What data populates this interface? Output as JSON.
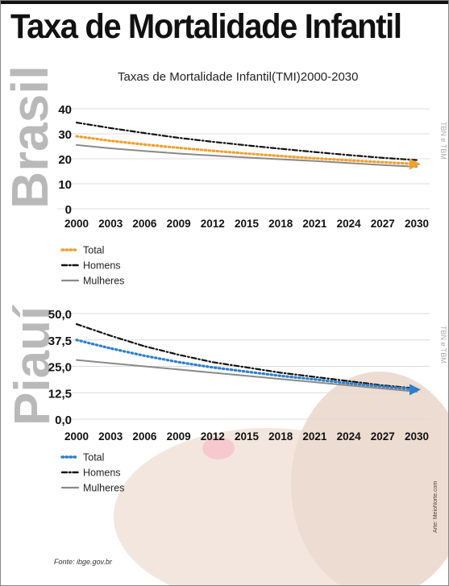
{
  "title": "Taxa de Mortalidade Infantil",
  "subtitle": "Taxas de Mortalidade Infantil(TMI)2000-2030",
  "source": "Fonte: ibge.gov.br",
  "credit": "Arte: MeioNorte.com",
  "colors": {
    "total_brasil": "#f0a030",
    "total_piaui": "#2f7fc8",
    "homens": "#111111",
    "mulheres": "#8a8a8a",
    "grid": "#dcdcdc",
    "watermark": "#b9b9b9"
  },
  "chart_data": [
    {
      "type": "line",
      "region_label": "Brasil",
      "side_label": "TBN e TBM",
      "x": [
        2000,
        2003,
        2006,
        2009,
        2012,
        2015,
        2018,
        2021,
        2024,
        2027,
        2030
      ],
      "xlim": [
        2000,
        2030
      ],
      "ylim": [
        0,
        40
      ],
      "yticks": [
        0,
        10,
        20,
        30,
        40
      ],
      "ytick_labels": [
        "0",
        "10",
        "20",
        "30",
        "40"
      ],
      "grid": true,
      "legend_position": "bottom-left",
      "series": [
        {
          "name": "Total",
          "style": "dotted",
          "values": [
            29.0,
            27.2,
            25.7,
            24.4,
            23.2,
            22.1,
            21.1,
            20.2,
            19.4,
            18.6,
            17.9
          ]
        },
        {
          "name": "Homens",
          "style": "dash-dot",
          "values": [
            34.5,
            32.3,
            30.3,
            28.4,
            26.8,
            25.4,
            24.0,
            22.7,
            21.5,
            20.4,
            19.5
          ]
        },
        {
          "name": "Mulheres",
          "style": "solid",
          "values": [
            25.5,
            24.2,
            23.1,
            22.1,
            21.3,
            20.5,
            19.8,
            19.1,
            18.3,
            17.5,
            16.8
          ]
        }
      ]
    },
    {
      "type": "line",
      "region_label": "Piauí",
      "side_label": "TBN e TBM",
      "x": [
        2000,
        2003,
        2006,
        2009,
        2012,
        2015,
        2018,
        2021,
        2024,
        2027,
        2030
      ],
      "xlim": [
        2000,
        2030
      ],
      "ylim": [
        0,
        50
      ],
      "yticks": [
        0,
        12.5,
        25,
        37.5,
        50
      ],
      "ytick_labels": [
        "0,0",
        "12,5",
        "25,0",
        "37,5",
        "50,0"
      ],
      "grid": true,
      "legend_position": "bottom-left",
      "series": [
        {
          "name": "Total",
          "style": "dotted",
          "values": [
            37.5,
            33.5,
            30.0,
            27.0,
            24.5,
            22.5,
            20.5,
            18.8,
            17.0,
            15.5,
            14.0
          ]
        },
        {
          "name": "Homens",
          "style": "dash-dot",
          "values": [
            45.0,
            39.5,
            34.5,
            30.5,
            27.0,
            24.5,
            22.0,
            20.0,
            18.0,
            16.0,
            14.5
          ]
        },
        {
          "name": "Mulheres",
          "style": "solid",
          "values": [
            28.0,
            26.5,
            25.0,
            23.5,
            22.0,
            20.5,
            19.0,
            17.5,
            16.0,
            14.5,
            13.0
          ]
        }
      ]
    }
  ]
}
